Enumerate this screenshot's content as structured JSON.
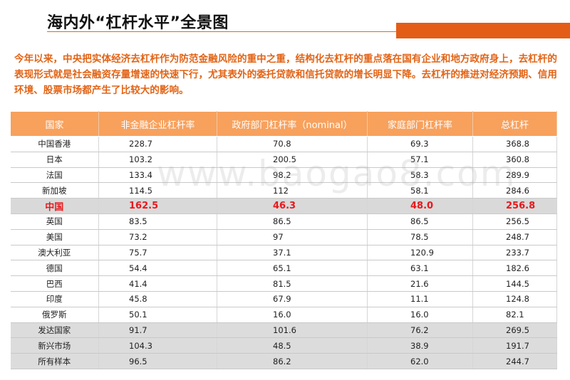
{
  "title": "海内外“杠杆水平”全景图",
  "summary": "今年以来，中央把实体经济去杠杆作为防范金融风险的重中之重，结构化去杠杆的重点落在国有企业和地方政府身上，去杠杆的表现形式就是社会融资存量增速的快速下行，尤其表外的委托贷款和信托贷款的增长明显下降。去杠杆的推进对经济预期、信用环境、股票市场都产生了比较大的影响。",
  "watermark": "www.baogao8.com",
  "colors": {
    "accent": "#e35d17",
    "header_bg": "#f7a15d",
    "highlight_text": "#e8181c"
  },
  "table": {
    "headers": [
      "国家",
      "非金融企业杠杆率",
      "政府部门杠杆率（nominal）",
      "家庭部门杠杆率",
      "总杠杆"
    ],
    "rows": [
      [
        "中国香港",
        "228.7",
        "70.8",
        "69.3",
        "368.8"
      ],
      [
        "日本",
        "103.2",
        "200.5",
        "57.1",
        "360.8"
      ],
      [
        "法国",
        "133.4",
        "98.2",
        "58.3",
        "289.9"
      ],
      [
        "新加坡",
        "114.5",
        "112",
        "58.1",
        "284.6"
      ],
      [
        "中国",
        "162.5",
        "46.3",
        "48.0",
        "256.8"
      ],
      [
        "英国",
        "83.5",
        "86.5",
        "86.5",
        "256.5"
      ],
      [
        "美国",
        "73.2",
        "97",
        "78.5",
        "248.7"
      ],
      [
        "澳大利亚",
        "75.7",
        "37.1",
        "120.9",
        "233.7"
      ],
      [
        "德国",
        "54.4",
        "65.1",
        "63.1",
        "182.6"
      ],
      [
        "巴西",
        "41.4",
        "81.5",
        "21.6",
        "144.5"
      ],
      [
        "印度",
        "45.8",
        "67.9",
        "11.1",
        "124.8"
      ],
      [
        "俄罗斯",
        "50.1",
        "16.0",
        "16.0",
        "82.1"
      ],
      [
        "发达国家",
        "91.7",
        "101.6",
        "76.2",
        "269.5"
      ],
      [
        "新兴市场",
        "104.3",
        "48.5",
        "38.9",
        "191.7"
      ],
      [
        "所有样本",
        "96.5",
        "86.2",
        "62.0",
        "244.7"
      ]
    ]
  }
}
